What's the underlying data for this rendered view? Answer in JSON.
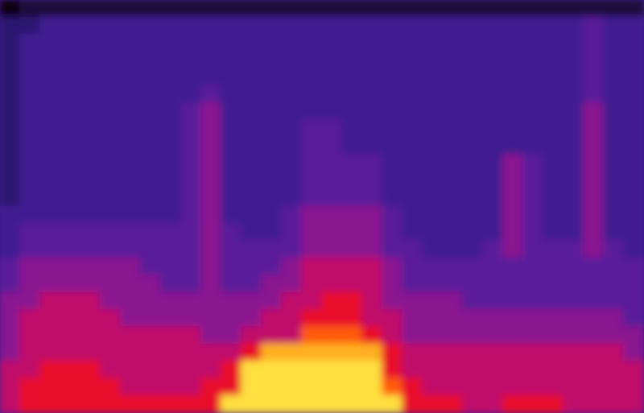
{
  "chart_data": {
    "type": "heatmap",
    "tick_labels": false,
    "cells": [
      [
        0,
        1,
        1,
        1,
        1,
        1,
        1,
        1,
        1,
        1,
        1,
        1,
        1,
        1,
        1,
        1,
        1,
        1,
        1,
        1,
        1,
        1,
        1,
        1,
        1,
        1,
        1,
        1,
        1,
        1,
        1,
        1
      ],
      [
        2,
        2,
        3,
        3,
        3,
        3,
        3,
        3,
        3,
        3,
        3,
        3,
        3,
        3,
        3,
        3,
        3,
        3,
        3,
        3,
        3,
        3,
        3,
        3,
        3,
        3,
        3,
        3,
        3,
        4,
        3,
        3
      ],
      [
        2,
        3,
        3,
        3,
        3,
        3,
        3,
        3,
        3,
        3,
        3,
        3,
        3,
        3,
        3,
        3,
        3,
        3,
        3,
        3,
        3,
        3,
        3,
        3,
        3,
        3,
        3,
        3,
        3,
        4,
        3,
        3
      ],
      [
        2,
        3,
        3,
        3,
        3,
        3,
        3,
        3,
        3,
        3,
        3,
        3,
        3,
        3,
        3,
        3,
        3,
        3,
        3,
        3,
        3,
        3,
        3,
        3,
        3,
        3,
        3,
        3,
        3,
        4,
        3,
        3
      ],
      [
        2,
        3,
        3,
        3,
        3,
        3,
        3,
        3,
        3,
        3,
        3,
        3,
        3,
        3,
        3,
        3,
        3,
        3,
        3,
        3,
        3,
        3,
        3,
        3,
        3,
        3,
        3,
        3,
        3,
        4,
        3,
        3
      ],
      [
        2,
        3,
        3,
        3,
        3,
        3,
        3,
        3,
        3,
        3,
        4,
        3,
        3,
        3,
        3,
        3,
        3,
        3,
        3,
        3,
        3,
        3,
        3,
        3,
        3,
        3,
        3,
        3,
        3,
        4,
        3,
        3
      ],
      [
        2,
        3,
        3,
        3,
        3,
        3,
        3,
        3,
        3,
        4,
        5,
        3,
        3,
        3,
        3,
        3,
        3,
        3,
        3,
        3,
        3,
        3,
        3,
        3,
        3,
        3,
        3,
        3,
        3,
        5,
        3,
        3
      ],
      [
        2,
        3,
        3,
        3,
        3,
        3,
        3,
        3,
        3,
        4,
        5,
        3,
        3,
        3,
        3,
        4,
        4,
        3,
        3,
        3,
        3,
        3,
        3,
        3,
        3,
        3,
        3,
        3,
        3,
        5,
        3,
        3
      ],
      [
        2,
        3,
        3,
        3,
        3,
        3,
        3,
        3,
        3,
        4,
        5,
        3,
        3,
        3,
        3,
        4,
        4,
        3,
        3,
        3,
        3,
        3,
        3,
        3,
        3,
        3,
        3,
        3,
        3,
        5,
        3,
        3
      ],
      [
        2,
        3,
        3,
        3,
        3,
        3,
        3,
        3,
        3,
        4,
        5,
        3,
        3,
        3,
        3,
        4,
        4,
        4,
        4,
        3,
        3,
        3,
        3,
        3,
        3,
        5,
        4,
        3,
        3,
        5,
        3,
        3
      ],
      [
        2,
        3,
        3,
        3,
        3,
        3,
        3,
        3,
        3,
        4,
        5,
        3,
        3,
        3,
        3,
        4,
        4,
        4,
        4,
        3,
        3,
        3,
        3,
        3,
        3,
        5,
        4,
        3,
        3,
        5,
        3,
        3
      ],
      [
        2,
        3,
        3,
        3,
        3,
        3,
        3,
        3,
        3,
        4,
        5,
        3,
        3,
        3,
        3,
        4,
        4,
        4,
        4,
        3,
        3,
        3,
        3,
        3,
        3,
        5,
        4,
        3,
        3,
        5,
        3,
        3
      ],
      [
        3,
        3,
        3,
        3,
        3,
        3,
        3,
        3,
        3,
        4,
        5,
        3,
        3,
        3,
        4,
        5,
        5,
        5,
        5,
        4,
        3,
        3,
        3,
        3,
        3,
        5,
        4,
        3,
        3,
        5,
        3,
        3
      ],
      [
        3,
        4,
        4,
        4,
        4,
        4,
        4,
        4,
        4,
        4,
        5,
        4,
        3,
        3,
        4,
        5,
        5,
        5,
        5,
        4,
        3,
        3,
        3,
        3,
        3,
        5,
        4,
        3,
        3,
        5,
        3,
        3
      ],
      [
        3,
        4,
        4,
        4,
        4,
        4,
        4,
        4,
        4,
        4,
        5,
        4,
        4,
        4,
        4,
        5,
        5,
        5,
        5,
        4,
        4,
        3,
        3,
        3,
        4,
        5,
        4,
        4,
        4,
        5,
        4,
        3
      ],
      [
        4,
        5,
        5,
        5,
        5,
        5,
        5,
        4,
        4,
        4,
        5,
        4,
        4,
        4,
        5,
        6,
        6,
        6,
        6,
        5,
        4,
        4,
        4,
        4,
        4,
        4,
        4,
        4,
        4,
        4,
        4,
        4
      ],
      [
        4,
        5,
        5,
        5,
        5,
        5,
        5,
        5,
        4,
        4,
        5,
        4,
        4,
        5,
        5,
        6,
        6,
        6,
        6,
        5,
        4,
        4,
        4,
        4,
        4,
        4,
        4,
        4,
        4,
        4,
        4,
        4
      ],
      [
        5,
        5,
        6,
        6,
        6,
        5,
        5,
        5,
        5,
        5,
        5,
        5,
        5,
        5,
        6,
        6,
        7,
        7,
        6,
        5,
        5,
        5,
        5,
        4,
        4,
        4,
        4,
        4,
        4,
        4,
        4,
        4
      ],
      [
        5,
        6,
        6,
        6,
        6,
        6,
        5,
        5,
        5,
        5,
        5,
        5,
        5,
        6,
        6,
        7,
        7,
        7,
        6,
        6,
        5,
        5,
        5,
        5,
        5,
        5,
        5,
        5,
        5,
        5,
        5,
        4
      ],
      [
        5,
        6,
        6,
        6,
        6,
        6,
        6,
        6,
        6,
        6,
        5,
        5,
        6,
        6,
        6,
        8,
        8,
        8,
        7,
        6,
        5,
        5,
        5,
        5,
        5,
        5,
        5,
        5,
        5,
        5,
        5,
        5
      ],
      [
        5,
        6,
        6,
        6,
        6,
        6,
        6,
        6,
        6,
        6,
        6,
        6,
        7,
        9,
        9,
        9,
        9,
        9,
        9,
        7,
        6,
        6,
        6,
        6,
        6,
        6,
        6,
        6,
        6,
        6,
        6,
        5
      ],
      [
        6,
        6,
        7,
        7,
        7,
        6,
        6,
        6,
        6,
        6,
        6,
        7,
        10,
        10,
        10,
        10,
        10,
        10,
        10,
        7,
        6,
        6,
        6,
        6,
        6,
        6,
        6,
        6,
        6,
        6,
        6,
        6
      ],
      [
        6,
        7,
        7,
        7,
        7,
        7,
        6,
        6,
        6,
        6,
        7,
        7,
        10,
        10,
        10,
        10,
        10,
        10,
        10,
        8,
        7,
        6,
        6,
        6,
        6,
        6,
        6,
        6,
        6,
        6,
        6,
        6
      ],
      [
        6,
        7,
        7,
        7,
        7,
        7,
        7,
        7,
        7,
        7,
        7,
        10,
        10,
        10,
        10,
        10,
        10,
        10,
        10,
        10,
        7,
        7,
        7,
        6,
        6,
        7,
        7,
        7,
        6,
        6,
        6,
        6
      ]
    ]
  }
}
